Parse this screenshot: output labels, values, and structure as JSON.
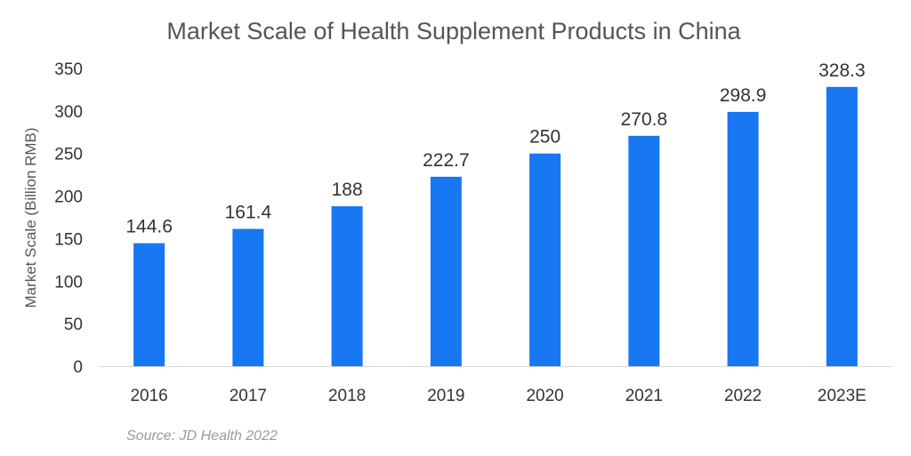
{
  "chart_data": {
    "type": "bar",
    "title": "Market Scale of Health Supplement Products in China",
    "xlabel": "",
    "ylabel": "Market Scale (Billion RMB)",
    "categories": [
      "2016",
      "2017",
      "2018",
      "2019",
      "2020",
      "2021",
      "2022",
      "2023E"
    ],
    "values": [
      144.6,
      161.4,
      188,
      222.7,
      250,
      270.8,
      298.9,
      328.3
    ],
    "data_labels": [
      "144.6",
      "161.4",
      "188",
      "222.7",
      "250",
      "270.8",
      "298.9",
      "328.3"
    ],
    "ylim": [
      0,
      350
    ],
    "yticks": [
      0,
      50,
      100,
      150,
      200,
      250,
      300,
      350
    ],
    "grid": false,
    "legend": "none",
    "bar_color": "#1877F2",
    "source": "Source: JD Health 2022"
  }
}
